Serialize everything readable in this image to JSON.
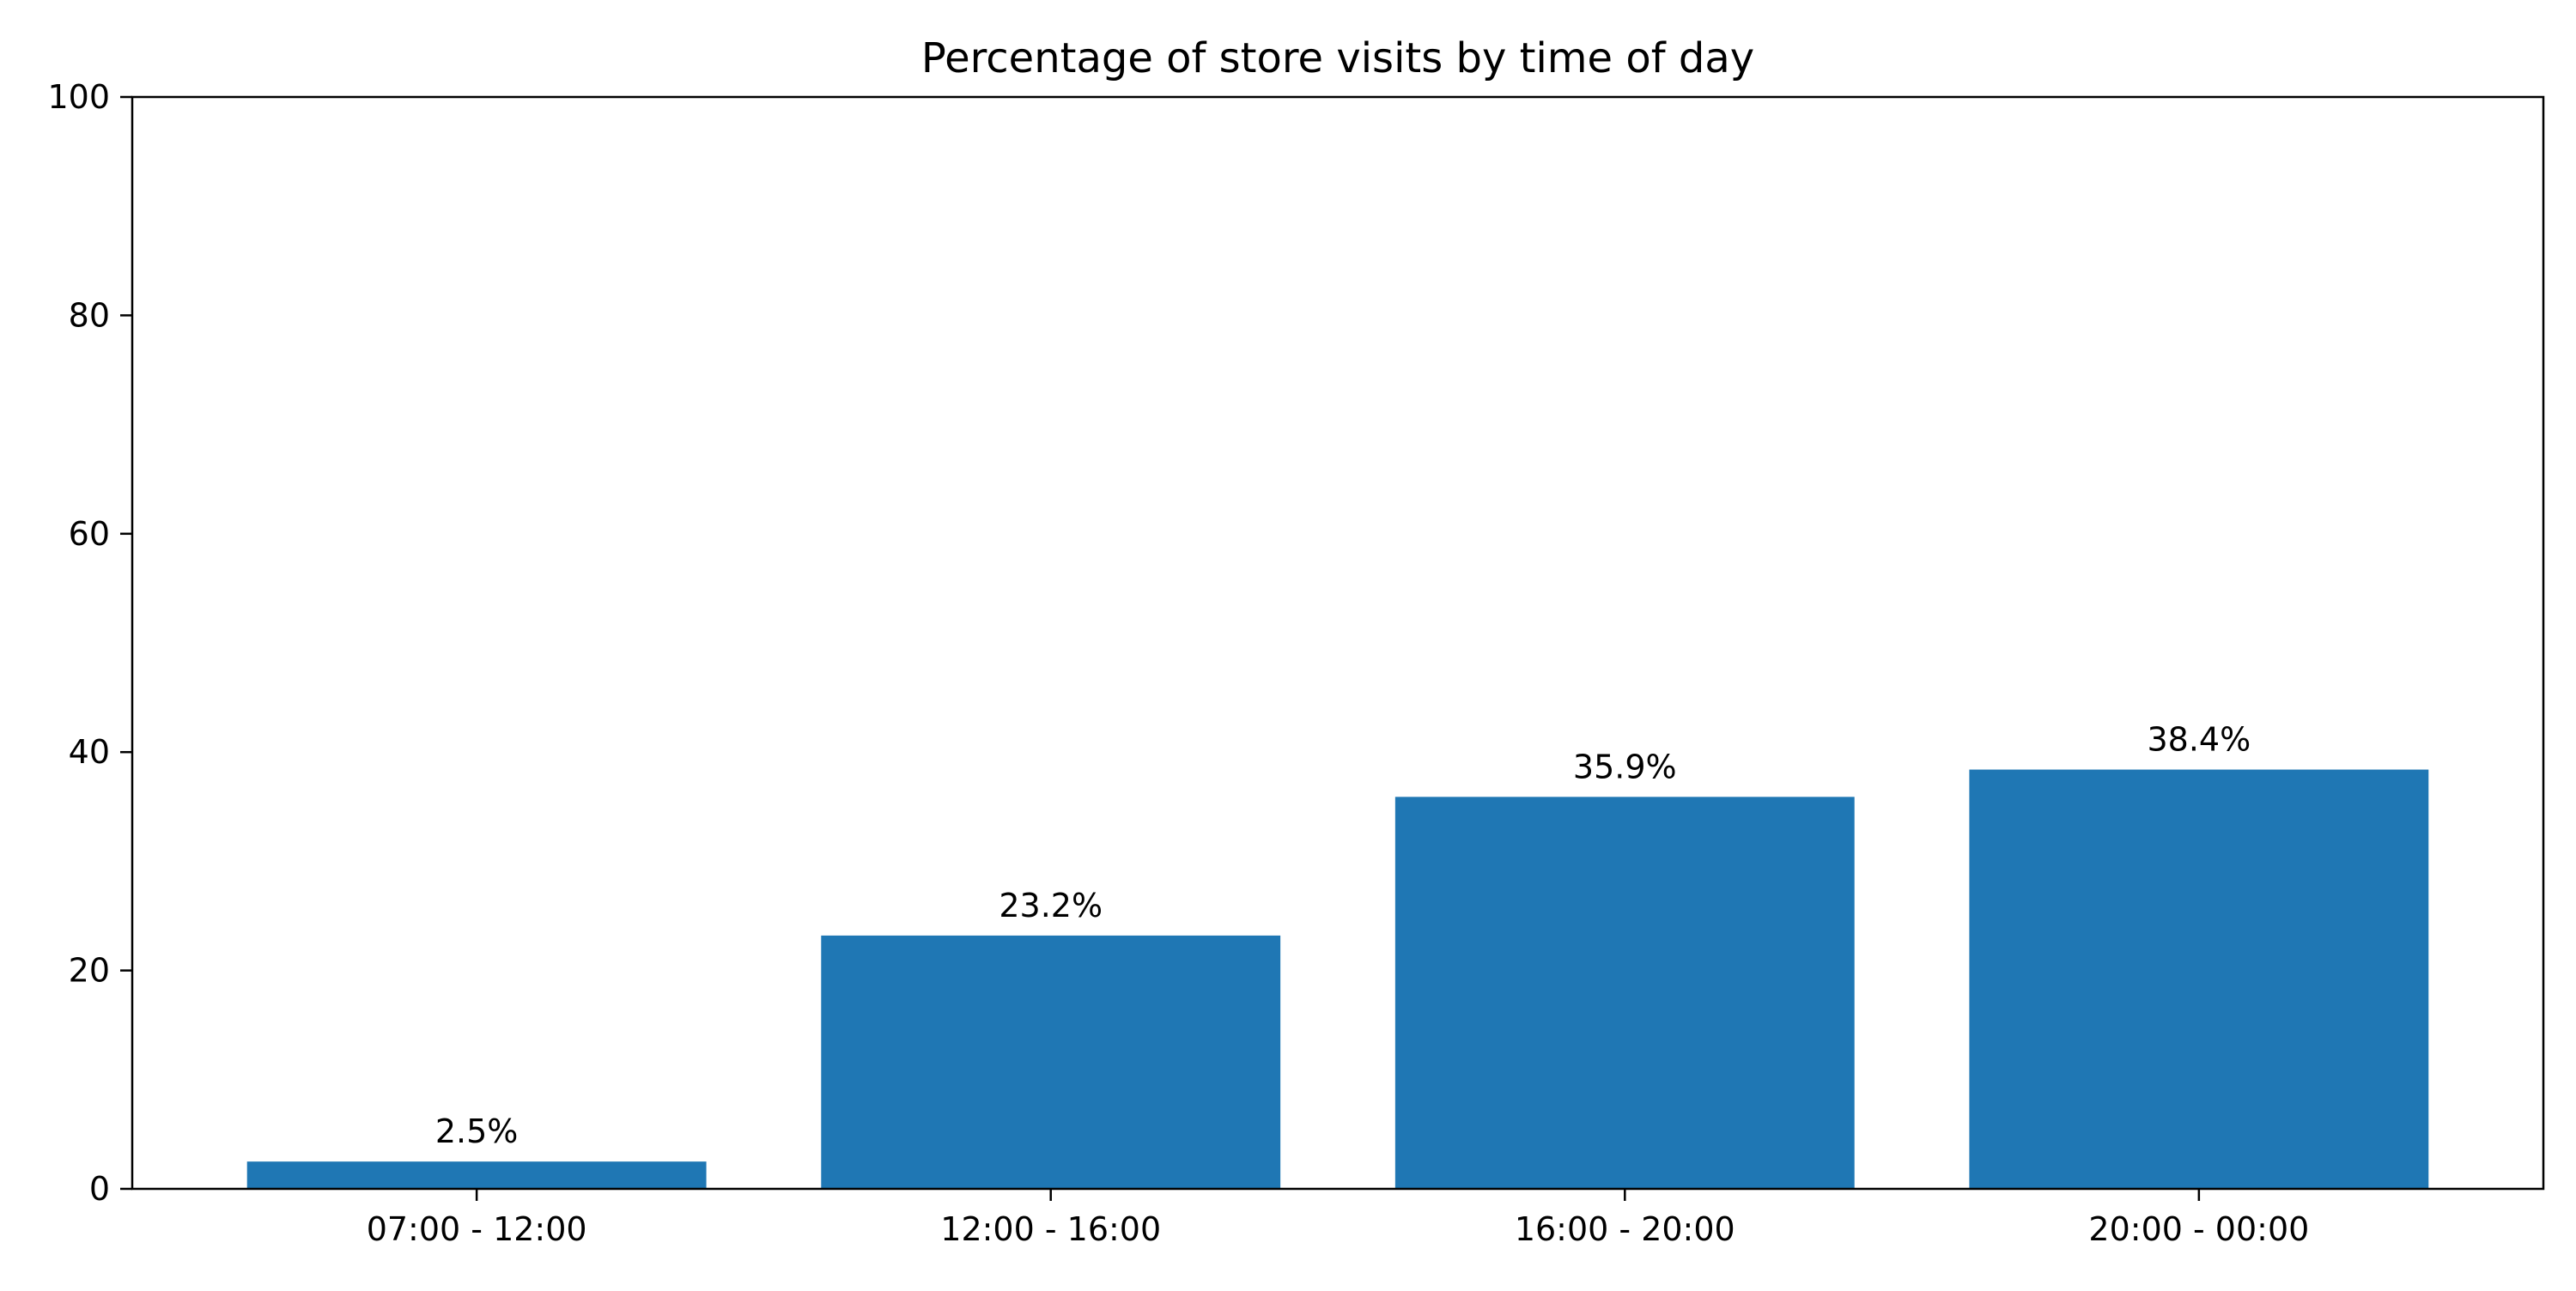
{
  "chart_data": {
    "type": "bar",
    "title": "Percentage of store visits by time of day",
    "xlabel": "",
    "ylabel": "",
    "categories": [
      "07:00 - 12:00",
      "12:00 - 16:00",
      "16:00 - 20:00",
      "20:00 - 00:00"
    ],
    "values": [
      2.5,
      23.2,
      35.9,
      38.4
    ],
    "data_labels": [
      "2.5%",
      "23.2%",
      "35.9%",
      "38.4%"
    ],
    "ylim": [
      0,
      100
    ],
    "yticks": [
      0,
      20,
      40,
      60,
      80,
      100
    ],
    "ytick_labels": [
      "0",
      "20",
      "40",
      "60",
      "80",
      "100"
    ],
    "grid": false,
    "legend": "none",
    "colors": {
      "bar": "#1f77b4",
      "axes": "#000000",
      "background": "#ffffff"
    }
  }
}
